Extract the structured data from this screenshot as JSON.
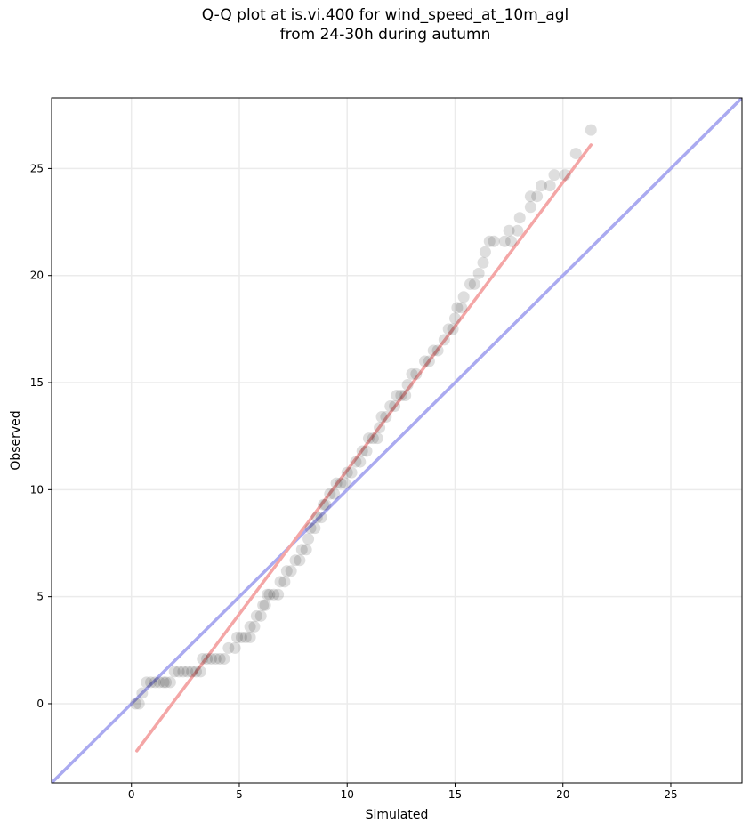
{
  "chart_data": {
    "type": "scatter",
    "title": "Q-Q plot at is.vi.400 for wind_speed_at_10m_agl\nfrom 24-30h during autumn",
    "xlabel": "Simulated",
    "ylabel": "Observed",
    "xlim": [
      -3.7,
      28.3
    ],
    "ylim": [
      -3.7,
      28.3
    ],
    "xticks": [
      0,
      5,
      10,
      15,
      20,
      25
    ],
    "yticks": [
      0,
      5,
      10,
      15,
      20,
      25
    ],
    "grid": true,
    "legend": "none",
    "colors": {
      "points": "#000000",
      "identity_line": "#aaaaf0",
      "fit_line": "#f4a6a6",
      "grid": "#ebebeb"
    },
    "reference_lines": [
      {
        "kind": "identity",
        "from": [
          -3.7,
          -3.7
        ],
        "to": [
          28.3,
          28.3
        ],
        "color": "#aaaaf0"
      },
      {
        "kind": "fit",
        "from": [
          0.25,
          -2.2
        ],
        "to": [
          21.3,
          26.1
        ],
        "color": "#f4a6a6"
      }
    ],
    "series": [
      {
        "points": [
          [
            0.2,
            0.0
          ],
          [
            0.35,
            0.0
          ],
          [
            0.5,
            0.5
          ],
          [
            0.7,
            1.0
          ],
          [
            0.9,
            1.0
          ],
          [
            1.1,
            1.0
          ],
          [
            1.3,
            1.0
          ],
          [
            1.5,
            1.0
          ],
          [
            1.6,
            1.0
          ],
          [
            1.8,
            1.0
          ],
          [
            2.0,
            1.5
          ],
          [
            2.2,
            1.5
          ],
          [
            2.4,
            1.5
          ],
          [
            2.6,
            1.5
          ],
          [
            2.8,
            1.5
          ],
          [
            3.0,
            1.5
          ],
          [
            3.2,
            1.5
          ],
          [
            3.3,
            2.1
          ],
          [
            3.5,
            2.1
          ],
          [
            3.7,
            2.1
          ],
          [
            3.9,
            2.1
          ],
          [
            4.1,
            2.1
          ],
          [
            4.3,
            2.1
          ],
          [
            4.5,
            2.6
          ],
          [
            4.8,
            2.6
          ],
          [
            4.9,
            3.1
          ],
          [
            5.1,
            3.1
          ],
          [
            5.3,
            3.1
          ],
          [
            5.5,
            3.1
          ],
          [
            5.5,
            3.6
          ],
          [
            5.7,
            3.6
          ],
          [
            5.8,
            4.1
          ],
          [
            6.0,
            4.1
          ],
          [
            6.1,
            4.6
          ],
          [
            6.2,
            4.6
          ],
          [
            6.3,
            5.1
          ],
          [
            6.4,
            5.1
          ],
          [
            6.6,
            5.1
          ],
          [
            6.8,
            5.1
          ],
          [
            6.9,
            5.7
          ],
          [
            7.1,
            5.7
          ],
          [
            7.2,
            6.2
          ],
          [
            7.4,
            6.2
          ],
          [
            7.6,
            6.7
          ],
          [
            7.8,
            6.7
          ],
          [
            7.9,
            7.2
          ],
          [
            8.1,
            7.2
          ],
          [
            8.2,
            7.7
          ],
          [
            8.3,
            8.2
          ],
          [
            8.5,
            8.2
          ],
          [
            8.6,
            8.7
          ],
          [
            8.8,
            8.7
          ],
          [
            8.9,
            9.3
          ],
          [
            9.0,
            9.3
          ],
          [
            9.2,
            9.8
          ],
          [
            9.4,
            9.8
          ],
          [
            9.5,
            10.3
          ],
          [
            9.7,
            10.3
          ],
          [
            9.9,
            10.3
          ],
          [
            10.0,
            10.8
          ],
          [
            10.2,
            10.8
          ],
          [
            10.4,
            11.3
          ],
          [
            10.6,
            11.3
          ],
          [
            10.7,
            11.8
          ],
          [
            10.9,
            11.8
          ],
          [
            11.0,
            12.4
          ],
          [
            11.2,
            12.4
          ],
          [
            11.4,
            12.4
          ],
          [
            11.5,
            12.9
          ],
          [
            11.6,
            13.4
          ],
          [
            11.8,
            13.4
          ],
          [
            12.0,
            13.9
          ],
          [
            12.2,
            13.9
          ],
          [
            12.3,
            14.4
          ],
          [
            12.5,
            14.4
          ],
          [
            12.7,
            14.4
          ],
          [
            12.8,
            14.9
          ],
          [
            13.0,
            15.4
          ],
          [
            13.2,
            15.4
          ],
          [
            13.6,
            16.0
          ],
          [
            13.8,
            16.0
          ],
          [
            14.0,
            16.5
          ],
          [
            14.2,
            16.5
          ],
          [
            14.5,
            17.0
          ],
          [
            14.7,
            17.5
          ],
          [
            14.9,
            17.5
          ],
          [
            15.0,
            18.0
          ],
          [
            15.1,
            18.5
          ],
          [
            15.3,
            18.5
          ],
          [
            15.4,
            19.0
          ],
          [
            15.7,
            19.6
          ],
          [
            15.9,
            19.6
          ],
          [
            16.1,
            20.1
          ],
          [
            16.3,
            20.6
          ],
          [
            16.4,
            21.1
          ],
          [
            16.6,
            21.6
          ],
          [
            16.8,
            21.6
          ],
          [
            17.3,
            21.6
          ],
          [
            17.6,
            21.6
          ],
          [
            17.5,
            22.1
          ],
          [
            17.9,
            22.1
          ],
          [
            18.0,
            22.7
          ],
          [
            18.5,
            23.2
          ],
          [
            18.5,
            23.7
          ],
          [
            18.8,
            23.7
          ],
          [
            19.0,
            24.2
          ],
          [
            19.4,
            24.2
          ],
          [
            19.6,
            24.7
          ],
          [
            20.1,
            24.7
          ],
          [
            20.6,
            25.7
          ],
          [
            21.3,
            26.8
          ]
        ]
      }
    ]
  }
}
